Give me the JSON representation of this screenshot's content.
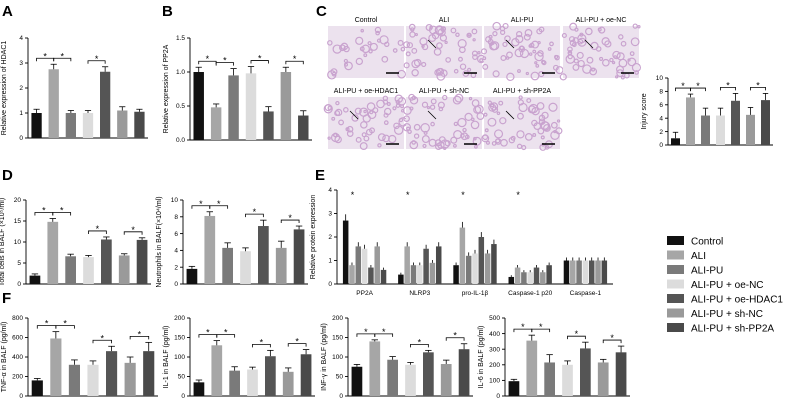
{
  "panel_labels": {
    "A": "A",
    "B": "B",
    "C": "C",
    "D": "D",
    "E": "E",
    "F": "F"
  },
  "colors": {
    "Control": "#111111",
    "ALI": "#a6a6a6",
    "ALI-PU": "#7a7a7a",
    "ALI-PU + oe-NC": "#dcdcdc",
    "ALI-PU + oe-HDAC1": "#555555",
    "ALI-PU + sh-NC": "#9a9a9a",
    "ALI-PU + sh-PP2A": "#4a4a4a",
    "tissue_bg": "#ece2ee",
    "tissue_stain": "#c9a3cf"
  },
  "legend": {
    "groups": [
      "Control",
      "ALI",
      "ALI-PU",
      "ALI-PU + oe-NC",
      "ALI-PU + oe-HDAC1",
      "ALI-PU + sh-NC",
      "ALI-PU + sh-PP2A"
    ]
  },
  "histology": {
    "titles": [
      "Control",
      "ALI",
      "ALI-PU",
      "ALI-PU + oe-NC",
      "ALI-PU + oe-HDAC1",
      "ALI-PU + sh-NC",
      "ALI-PU + sh-PP2A"
    ]
  },
  "chart_data": [
    {
      "id": "A",
      "type": "bar",
      "ylabel": "Relative expression of HDAC1",
      "ylim": [
        0,
        4
      ],
      "yticks": [
        "0",
        "1",
        "2",
        "3",
        "4"
      ],
      "categories": [
        "Control",
        "ALI",
        "ALI-PU",
        "ALI-PU + oe-NC",
        "ALI-PU + oe-HDAC1",
        "ALI-PU + sh-NC",
        "ALI-PU + sh-PP2A"
      ],
      "values": [
        1.0,
        2.75,
        1.0,
        1.0,
        2.65,
        1.1,
        1.05
      ],
      "errors": [
        0.15,
        0.2,
        0.1,
        0.1,
        0.2,
        0.15,
        0.1
      ],
      "sig_brackets": [
        [
          0,
          1
        ],
        [
          1,
          2
        ],
        [
          3,
          4
        ]
      ]
    },
    {
      "id": "B",
      "type": "bar",
      "ylabel": "Relative expression of PP2A",
      "ylim": [
        0,
        1.5
      ],
      "yticks": [
        "0.0",
        "0.5",
        "1.0",
        "1.5"
      ],
      "categories": [
        "Control",
        "ALI",
        "ALI-PU",
        "ALI-PU + oe-NC",
        "ALI-PU + oe-HDAC1",
        "ALI-PU + sh-NC",
        "ALI-PU + sh-PP2A"
      ],
      "values": [
        1.0,
        0.48,
        0.95,
        0.98,
        0.42,
        1.0,
        0.36
      ],
      "errors": [
        0.07,
        0.05,
        0.1,
        0.1,
        0.07,
        0.07,
        0.07
      ],
      "sig_brackets": [
        [
          0,
          1
        ],
        [
          1,
          2
        ],
        [
          3,
          4
        ],
        [
          5,
          6
        ]
      ]
    },
    {
      "id": "C",
      "type": "bar",
      "ylabel": "Injury score",
      "ylim": [
        0,
        10
      ],
      "yticks": [
        "0",
        "2",
        "4",
        "6",
        "8",
        "10"
      ],
      "categories": [
        "Control",
        "ALI",
        "ALI-PU",
        "ALI-PU + oe-NC",
        "ALI-PU + oe-HDAC1",
        "ALI-PU + sh-NC",
        "ALI-PU + sh-PP2A"
      ],
      "values": [
        1.0,
        7.1,
        4.4,
        4.4,
        6.6,
        4.5,
        6.7
      ],
      "errors": [
        0.9,
        0.5,
        1.1,
        1.1,
        1.1,
        1.1,
        1.0
      ],
      "sig_brackets": [
        [
          0,
          1
        ],
        [
          1,
          2
        ],
        [
          3,
          4
        ],
        [
          5,
          6
        ]
      ]
    },
    {
      "id": "D1",
      "type": "bar",
      "ylabel": "Total cells in BALF (×10⁵/ml)",
      "ylim": [
        0,
        20
      ],
      "yticks": [
        "0",
        "5",
        "10",
        "15",
        "20"
      ],
      "categories": [
        "Control",
        "ALI",
        "ALI-PU",
        "ALI-PU + oe-NC",
        "ALI-PU + oe-HDAC1",
        "ALI-PU + sh-NC",
        "ALI-PU + sh-PP2A"
      ],
      "values": [
        2.0,
        14.8,
        6.6,
        6.4,
        10.6,
        6.8,
        10.5
      ],
      "errors": [
        0.4,
        0.8,
        0.5,
        0.4,
        0.6,
        0.4,
        0.5
      ],
      "sig_brackets": [
        [
          0,
          1
        ],
        [
          1,
          2
        ],
        [
          3,
          4
        ],
        [
          5,
          6
        ]
      ]
    },
    {
      "id": "D2",
      "type": "bar",
      "ylabel": "Neutrophils in BALF(×10⁴/ml)",
      "ylim": [
        0,
        10
      ],
      "yticks": [
        "0",
        "2",
        "4",
        "6",
        "8",
        "10"
      ],
      "categories": [
        "Control",
        "ALI",
        "ALI-PU",
        "ALI-PU + oe-NC",
        "ALI-PU + oe-HDAC1",
        "ALI-PU + sh-NC",
        "ALI-PU + sh-PP2A"
      ],
      "values": [
        1.8,
        8.1,
        4.3,
        3.9,
        6.9,
        4.3,
        6.5
      ],
      "errors": [
        0.3,
        0.5,
        0.6,
        0.4,
        0.7,
        0.8,
        0.4
      ],
      "sig_brackets": [
        [
          0,
          1
        ],
        [
          1,
          2
        ],
        [
          3,
          4
        ],
        [
          5,
          6
        ]
      ]
    },
    {
      "id": "E",
      "type": "bar",
      "ylabel": "Relative protein expression",
      "ylim": [
        0,
        4
      ],
      "yticks": [
        "0",
        "1",
        "2",
        "3",
        "4"
      ],
      "categories": [
        "PP2A",
        "NLRP3",
        "pro-IL-1β",
        "Caspase-1 p20",
        "Caspase-1"
      ],
      "series": [
        {
          "name": "Control",
          "values": [
            2.7,
            0.4,
            0.8,
            0.3,
            1.0
          ]
        },
        {
          "name": "ALI",
          "values": [
            0.8,
            1.6,
            2.4,
            0.7,
            1.0
          ]
        },
        {
          "name": "ALI-PU",
          "values": [
            1.6,
            0.8,
            1.2,
            0.5,
            1.0
          ]
        },
        {
          "name": "ALI-PU + oe-NC",
          "values": [
            1.5,
            0.8,
            1.3,
            0.5,
            1.0
          ]
        },
        {
          "name": "ALI-PU + oe-HDAC1",
          "values": [
            0.7,
            1.5,
            2.0,
            0.7,
            1.0
          ]
        },
        {
          "name": "ALI-PU + sh-NC",
          "values": [
            1.6,
            0.9,
            1.3,
            0.5,
            1.0
          ]
        },
        {
          "name": "ALI-PU + sh-PP2A",
          "values": [
            0.6,
            1.6,
            1.7,
            0.8,
            1.0
          ]
        }
      ]
    },
    {
      "id": "F1",
      "type": "bar",
      "ylabel": "TNF-α in BALF (pg/ml)",
      "ylim": [
        0,
        800
      ],
      "yticks": [
        "0",
        "200",
        "400",
        "600",
        "800"
      ],
      "categories": [
        "Control",
        "ALI",
        "ALI-PU",
        "ALI-PU + oe-NC",
        "ALI-PU + oe-HDAC1",
        "ALI-PU + sh-NC",
        "ALI-PU + sh-PP2A"
      ],
      "values": [
        160,
        590,
        320,
        320,
        460,
        340,
        460
      ],
      "errors": [
        20,
        70,
        50,
        40,
        50,
        60,
        90
      ],
      "sig_brackets": [
        [
          0,
          1
        ],
        [
          1,
          2
        ],
        [
          3,
          4
        ],
        [
          5,
          6
        ]
      ]
    },
    {
      "id": "F2",
      "type": "bar",
      "ylabel": "IL-1 in BALF (pg/ml)",
      "ylim": [
        0,
        200
      ],
      "yticks": [
        "0",
        "50",
        "100",
        "150",
        "200"
      ],
      "categories": [
        "Control",
        "ALI",
        "ALI-PU",
        "ALI-PU + oe-NC",
        "ALI-PU + oe-HDAC1",
        "ALI-PU + sh-NC",
        "ALI-PU + sh-PP2A"
      ],
      "values": [
        35,
        130,
        65,
        68,
        102,
        62,
        107
      ],
      "errors": [
        6,
        12,
        10,
        6,
        15,
        10,
        12
      ],
      "sig_brackets": [
        [
          0,
          1
        ],
        [
          1,
          2
        ],
        [
          3,
          4
        ],
        [
          5,
          6
        ]
      ]
    },
    {
      "id": "F3",
      "type": "bar",
      "ylabel": "INF-γ in BALF (pg/ml)",
      "ylim": [
        0,
        200
      ],
      "yticks": [
        "0",
        "50",
        "100",
        "150",
        "200"
      ],
      "categories": [
        "Control",
        "ALI",
        "ALI-PU",
        "ALI-PU + oe-NC",
        "ALI-PU + oe-HDAC1",
        "ALI-PU + sh-NC",
        "ALI-PU + sh-PP2A"
      ],
      "values": [
        75,
        140,
        93,
        80,
        112,
        82,
        120
      ],
      "errors": [
        6,
        4,
        8,
        6,
        5,
        10,
        14
      ],
      "sig_brackets": [
        [
          0,
          1
        ],
        [
          1,
          2
        ],
        [
          3,
          4
        ],
        [
          5,
          6
        ]
      ]
    },
    {
      "id": "F4",
      "type": "bar",
      "ylabel": "IL-6 in BALF (pg/ml)",
      "ylim": [
        0,
        500
      ],
      "yticks": [
        "0",
        "100",
        "200",
        "300",
        "400",
        "500"
      ],
      "categories": [
        "Control",
        "ALI",
        "ALI-PU",
        "ALI-PU + oe-NC",
        "ALI-PU + oe-HDAC1",
        "ALI-PU + sh-NC",
        "ALI-PU + sh-PP2A"
      ],
      "values": [
        95,
        355,
        215,
        200,
        305,
        215,
        280
      ],
      "errors": [
        12,
        35,
        50,
        25,
        40,
        20,
        40
      ],
      "sig_brackets": [
        [
          0,
          1
        ],
        [
          1,
          2
        ],
        [
          3,
          4
        ],
        [
          5,
          6
        ]
      ]
    }
  ]
}
